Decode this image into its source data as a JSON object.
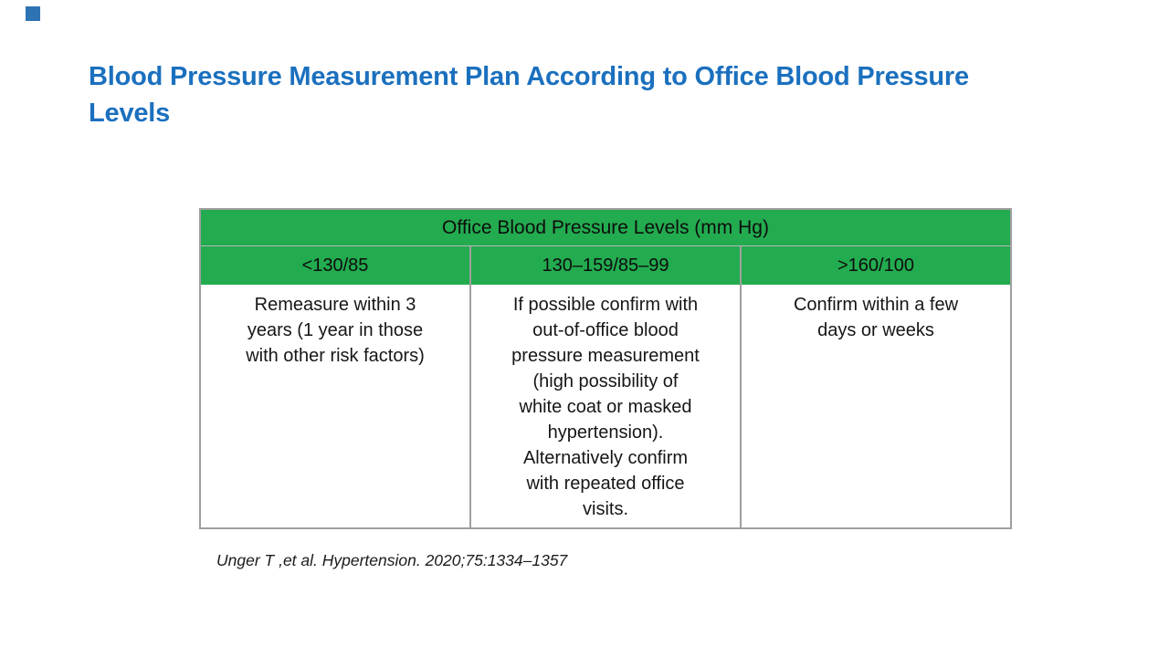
{
  "slide": {
    "title": "Blood Pressure Measurement Plan According to Office Blood Pressure\nLevels",
    "title_color": "#1b70be",
    "accent_square_color": "#2e74b5",
    "citation": "Unger T ,et al. Hypertension. 2020;75:1334–1357"
  },
  "table": {
    "header": "Office Blood Pressure Levels (mm Hg)",
    "header_bg": "#23ab4f",
    "border_color": "#9f9f9f",
    "columns": [
      {
        "range": "<130/85",
        "plan": "Remeasure within 3\nyears (1 year in those\nwith other risk factors)"
      },
      {
        "range": "130–159/85–99",
        "plan": "If possible confirm with\nout-of-office blood\npressure measurement\n(high possibility of\nwhite coat or masked\nhypertension).\nAlternatively confirm\nwith repeated office\nvisits."
      },
      {
        "range": ">160/100",
        "plan": "Confirm within a few\ndays or weeks"
      }
    ]
  }
}
